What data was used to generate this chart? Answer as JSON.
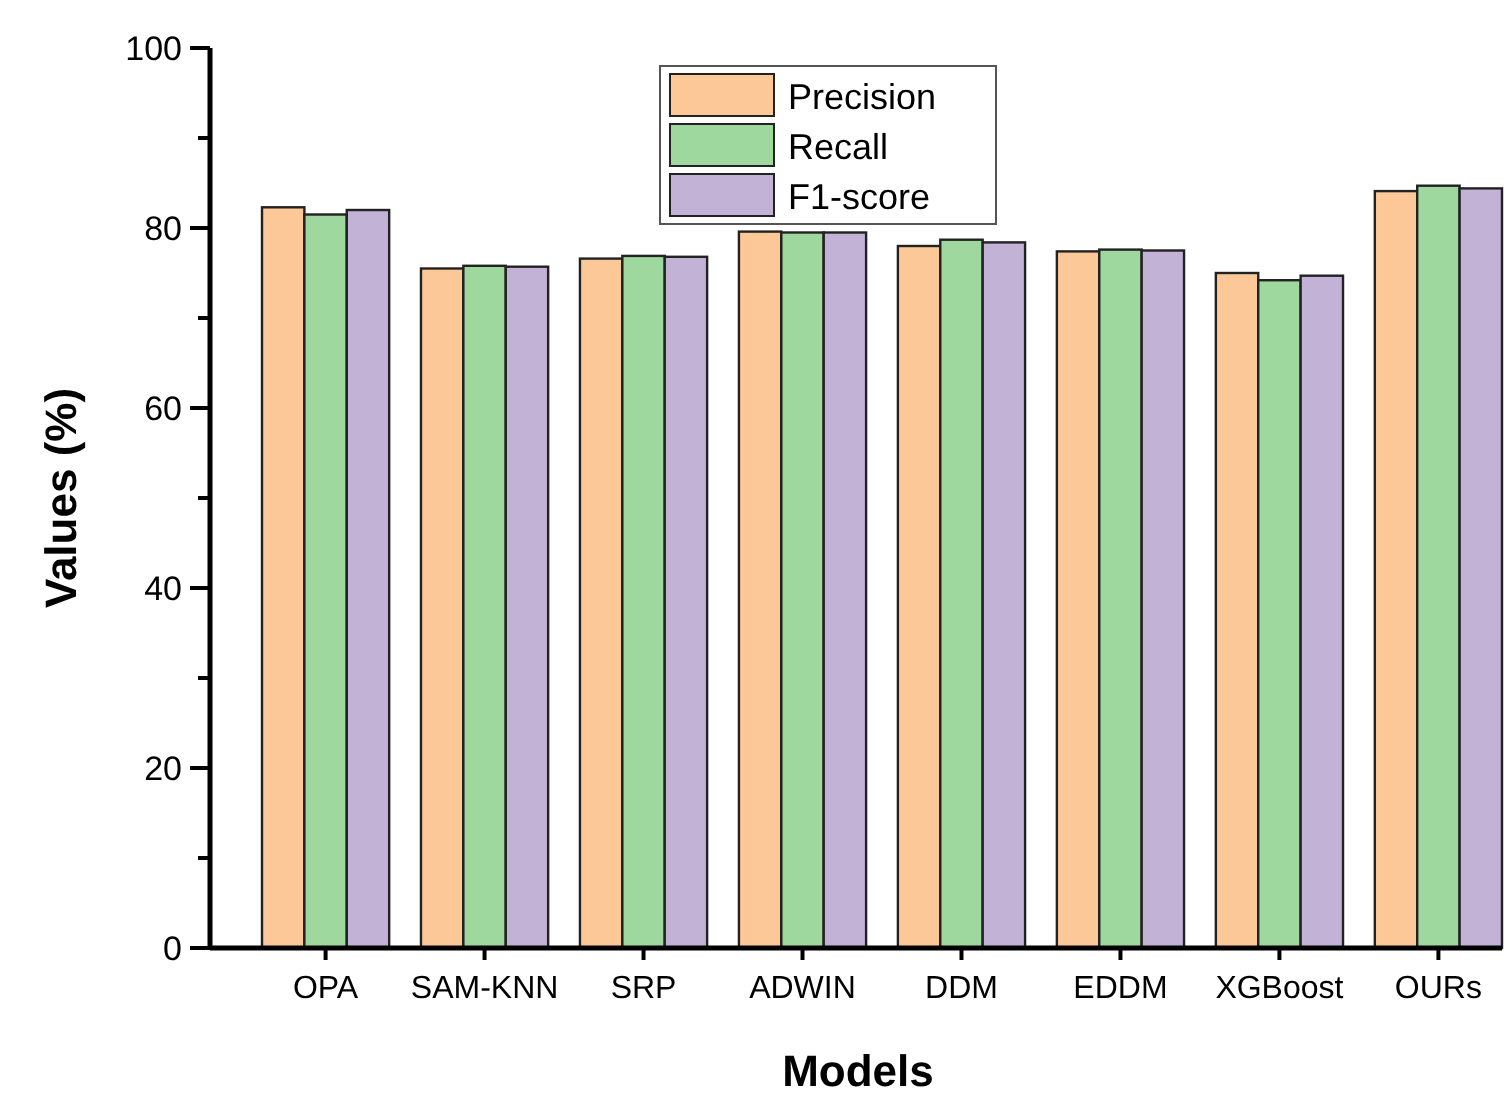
{
  "chart_data": {
    "type": "bar",
    "xlabel": "Models",
    "ylabel": "Values (%)",
    "categories": [
      "OPA",
      "SAM-KNN",
      "SRP",
      "ADWIN",
      "DDM",
      "EDDM",
      "XGBoost",
      "OURs"
    ],
    "series": [
      {
        "name": "Precision",
        "color": "#fdc897",
        "values": [
          82.3,
          75.5,
          76.6,
          79.6,
          78.0,
          77.4,
          75.0,
          84.1
        ]
      },
      {
        "name": "Recall",
        "color": "#9fd89e",
        "values": [
          81.5,
          75.8,
          76.9,
          79.5,
          78.7,
          77.6,
          74.2,
          84.7
        ]
      },
      {
        "name": "F1-score",
        "color": "#c2b2d6",
        "values": [
          82.0,
          75.7,
          76.8,
          79.5,
          78.4,
          77.5,
          74.7,
          84.4
        ]
      }
    ],
    "ylim": [
      0,
      100
    ],
    "yticks": [
      0,
      {
        "value": 10,
        "label": null
      },
      20,
      {
        "value": 30,
        "label": null
      },
      40,
      {
        "value": 50,
        "label": null
      },
      60,
      {
        "value": 70,
        "label": null
      },
      80,
      {
        "value": 90,
        "label": null
      },
      100
    ],
    "grid": false,
    "legend": "top"
  }
}
